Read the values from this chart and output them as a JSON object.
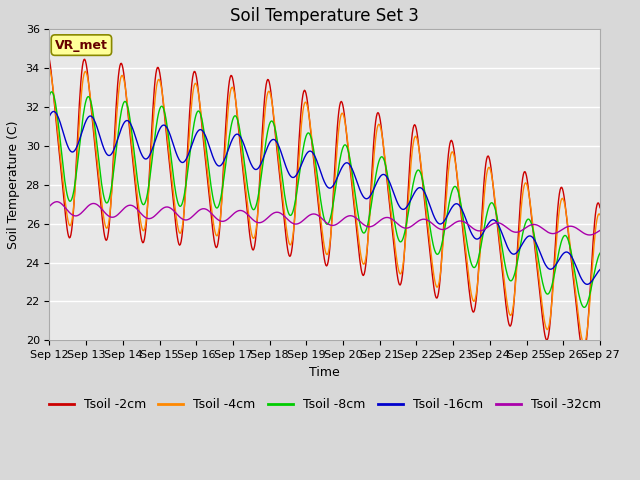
{
  "title": "Soil Temperature Set 3",
  "xlabel": "Time",
  "ylabel": "Soil Temperature (C)",
  "ylim": [
    20,
    36
  ],
  "yticks": [
    20,
    22,
    24,
    26,
    28,
    30,
    32,
    34,
    36
  ],
  "xtick_labels": [
    "Sep 12",
    "Sep 13",
    "Sep 14",
    "Sep 15",
    "Sep 16",
    "Sep 17",
    "Sep 18",
    "Sep 19",
    "Sep 20",
    "Sep 21",
    "Sep 22",
    "Sep 23",
    "Sep 24",
    "Sep 25",
    "Sep 26",
    "Sep 27"
  ],
  "legend_labels": [
    "Tsoil -2cm",
    "Tsoil -4cm",
    "Tsoil -8cm",
    "Tsoil -16cm",
    "Tsoil -32cm"
  ],
  "line_colors": [
    "#cc0000",
    "#ff8800",
    "#00cc00",
    "#0000cc",
    "#aa00aa"
  ],
  "fig_bg_color": "#d8d8d8",
  "plot_bg_color": "#e8e8e8",
  "annotation_text": "VR_met",
  "annotation_box_color": "#ffff99",
  "annotation_box_edge": "#888800",
  "grid_color": "#ffffff",
  "title_fontsize": 12,
  "label_fontsize": 9,
  "tick_fontsize": 8,
  "legend_fontsize": 9
}
